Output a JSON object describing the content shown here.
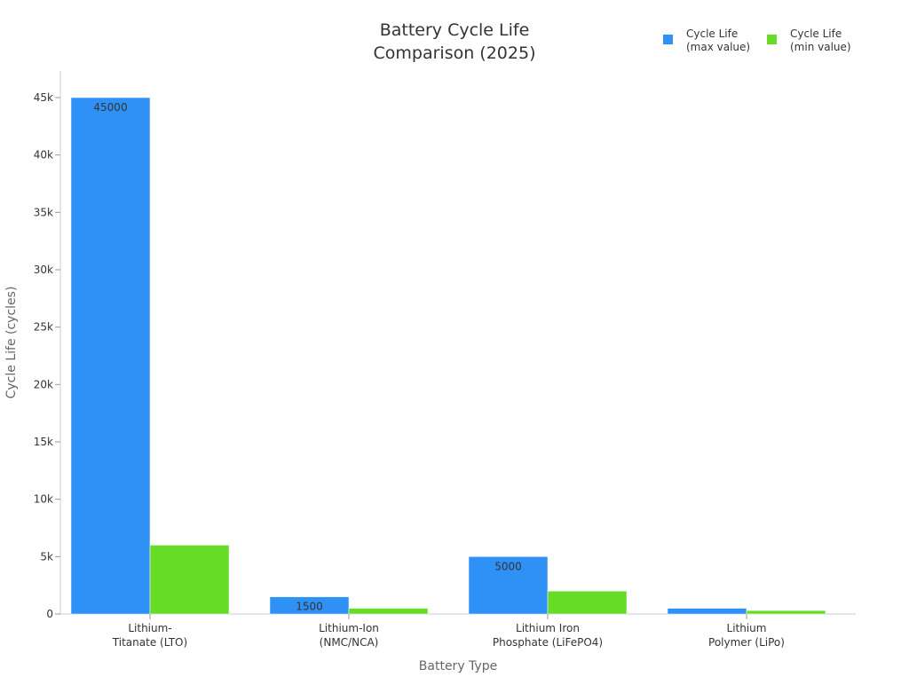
{
  "chart_data": {
    "type": "bar",
    "title_lines": [
      "Battery Cycle Life",
      "Comparison (2025)"
    ],
    "xlabel": "Battery Type",
    "ylabel": "Cycle Life (cycles)",
    "ylim": [
      0,
      45000
    ],
    "yticks": [
      0,
      5000,
      10000,
      15000,
      20000,
      25000,
      30000,
      35000,
      40000,
      45000
    ],
    "ytick_labels": [
      "0",
      "5k",
      "10k",
      "15k",
      "20k",
      "25k",
      "30k",
      "35k",
      "40k",
      "45k"
    ],
    "categories": [
      [
        "Lithium-",
        "Titanate (LTO)"
      ],
      [
        "Lithium-Ion",
        "(NMC/NCA)"
      ],
      [
        "Lithium Iron",
        "Phosphate (LiFePO4)"
      ],
      [
        "Lithium",
        "Polymer (LiPo)"
      ]
    ],
    "series": [
      {
        "name_lines": [
          "Cycle Life",
          "(max value)"
        ],
        "color": "#2f91f5",
        "values": [
          45000,
          1500,
          5000,
          500
        ],
        "data_labels": [
          "45000",
          "1500",
          "5000",
          ""
        ]
      },
      {
        "name_lines": [
          "Cycle Life",
          "(min value)"
        ],
        "color": "#66dc27",
        "values": [
          6000,
          500,
          2000,
          300
        ],
        "data_labels": [
          "",
          "",
          "",
          ""
        ]
      }
    ],
    "grid": false,
    "legend_position": "top-right"
  }
}
